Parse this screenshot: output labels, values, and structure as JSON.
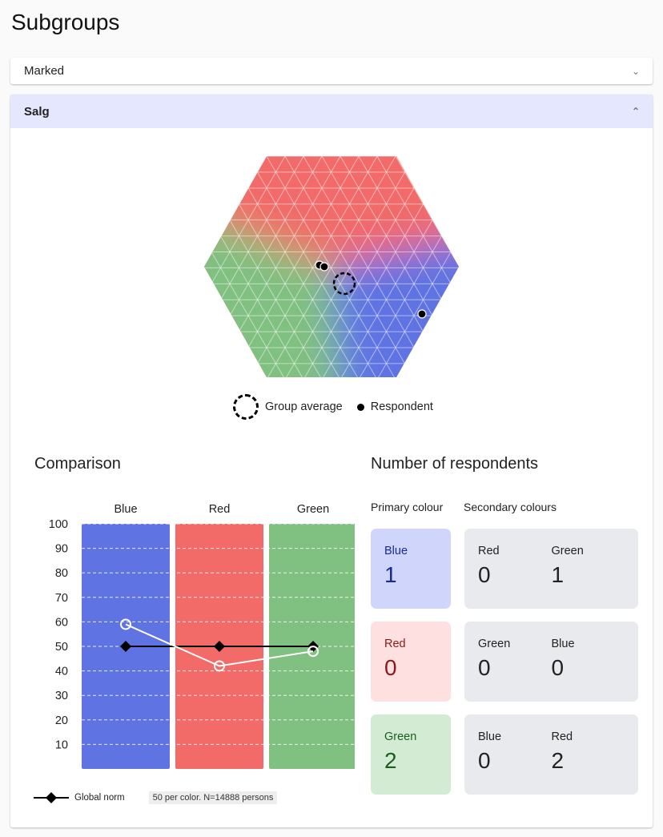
{
  "page_title": "Subgroups",
  "groups": [
    {
      "name": "Marked",
      "expanded": false
    },
    {
      "name": "Salg",
      "expanded": true
    }
  ],
  "hexagon": {
    "legend": {
      "group_average": "Group average",
      "respondent": "Respondent"
    }
  },
  "comparison": {
    "title": "Comparison",
    "columns": [
      "Blue",
      "Red",
      "Green"
    ],
    "column_colors": [
      "#5f73e3",
      "#f26b69",
      "#80c080"
    ],
    "y_ticks": [
      "100",
      "90",
      "80",
      "70",
      "60",
      "50",
      "40",
      "30",
      "20",
      "10"
    ],
    "legend_label": "Global norm",
    "info": "50 per color. N=14888 persons"
  },
  "chart_data": {
    "type": "line",
    "categories": [
      "Blue",
      "Red",
      "Green"
    ],
    "ylim": [
      0,
      100
    ],
    "series": [
      {
        "name": "Global norm",
        "values": [
          50,
          50,
          50
        ],
        "marker": "diamond",
        "color": "#000000"
      },
      {
        "values": [
          59,
          42,
          48
        ],
        "marker": "circle",
        "color": "#ffffff"
      }
    ]
  },
  "respondents": {
    "title": "Number of respondents",
    "primary_label": "Primary colour",
    "secondary_label": "Secondary colours",
    "rows": [
      {
        "primary": "Blue",
        "primary_count": "1",
        "bg": "#d0d6fb",
        "fg": "#1a2a94",
        "sec": [
          {
            "name": "Red",
            "count": "0"
          },
          {
            "name": "Green",
            "count": "1"
          }
        ]
      },
      {
        "primary": "Red",
        "primary_count": "0",
        "bg": "#fde0df",
        "fg": "#8a1a1a",
        "sec": [
          {
            "name": "Green",
            "count": "0"
          },
          {
            "name": "Blue",
            "count": "0"
          }
        ]
      },
      {
        "primary": "Green",
        "primary_count": "2",
        "bg": "#d2ebd2",
        "fg": "#1b5e20",
        "sec": [
          {
            "name": "Blue",
            "count": "0"
          },
          {
            "name": "Red",
            "count": "2"
          }
        ]
      }
    ]
  }
}
